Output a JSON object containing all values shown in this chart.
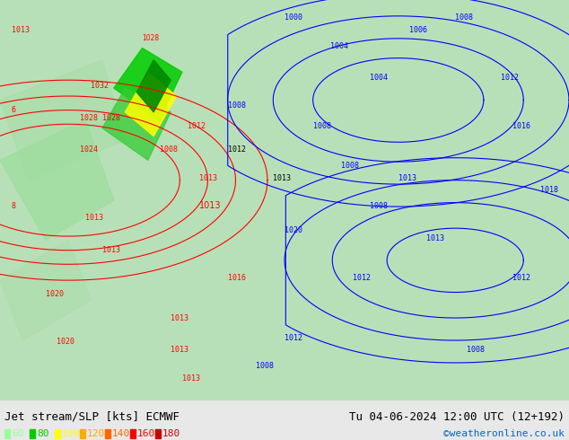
{
  "title_left": "Jet stream/SLP [kts] ECMWF",
  "title_right": "Tu 04-06-2024 12:00 UTC (12+192)",
  "credit": "©weatheronline.co.uk",
  "legend_values": [
    60,
    80,
    100,
    120,
    140,
    160,
    180
  ],
  "legend_colors": [
    "#99ff99",
    "#00cc00",
    "#ffff00",
    "#ffaa00",
    "#ff6600",
    "#ff0000",
    "#cc0000"
  ],
  "bg_color": "#aaddaa",
  "bottom_bar_color": "#e8e8e8",
  "fig_width": 6.34,
  "fig_height": 4.9,
  "dpi": 100
}
